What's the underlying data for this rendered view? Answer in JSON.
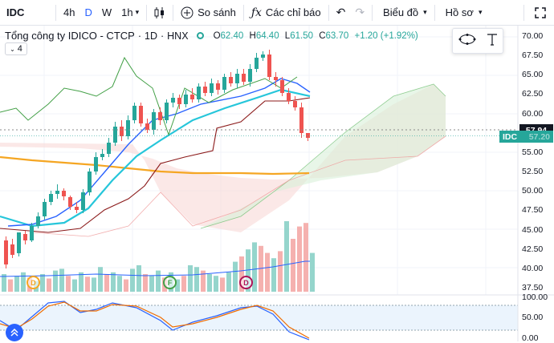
{
  "toolbar": {
    "symbol": "IDC",
    "timeframes": [
      "4h",
      "D",
      "W",
      "1h"
    ],
    "active_timeframe": "D",
    "compare_label": "So sánh",
    "indicators_label": "Các chỉ báo",
    "chart_label": "Biểu đồ",
    "profile_label": "Hồ sơ"
  },
  "legend": {
    "company": "Tổng công ty IDICO - CTCP",
    "interval": "1D",
    "exchange": "HNX",
    "o_label": "O",
    "o": "62.40",
    "h_label": "H",
    "h": "64.40",
    "l_label": "L",
    "l": "61.50",
    "c_label": "C",
    "c": "63.70",
    "change": "+1.20 (+1.92%)",
    "collapsed_count": "4"
  },
  "price_axis": {
    "ticks": [
      "70.00",
      "67.50",
      "65.00",
      "62.50",
      "60.00",
      "57.50",
      "55.00",
      "52.50",
      "50.00",
      "47.50",
      "45.00",
      "42.50",
      "40.00",
      "37.50"
    ],
    "current_price": "57.94",
    "symbol_tag": "IDC",
    "tag_value": "57.20"
  },
  "osc_axis": {
    "ticks": [
      "100.00",
      "50.00",
      "0.00"
    ]
  },
  "markers": [
    "D",
    "F",
    "D"
  ],
  "colors": {
    "up": "#26a69a",
    "down": "#ef5350",
    "accent": "#2962ff",
    "ma_orange": "#f5a623",
    "ma_cyan": "#26c6da"
  }
}
